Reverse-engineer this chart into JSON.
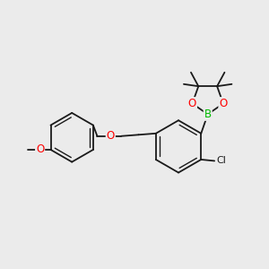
{
  "background_color": "#ebebeb",
  "bond_color": "#1a1a1a",
  "atom_colors": {
    "O": "#ff0000",
    "B": "#00bb00",
    "Cl": "#1a1a1a",
    "C": "#1a1a1a"
  },
  "figsize": [
    3.0,
    3.0
  ],
  "dpi": 100
}
